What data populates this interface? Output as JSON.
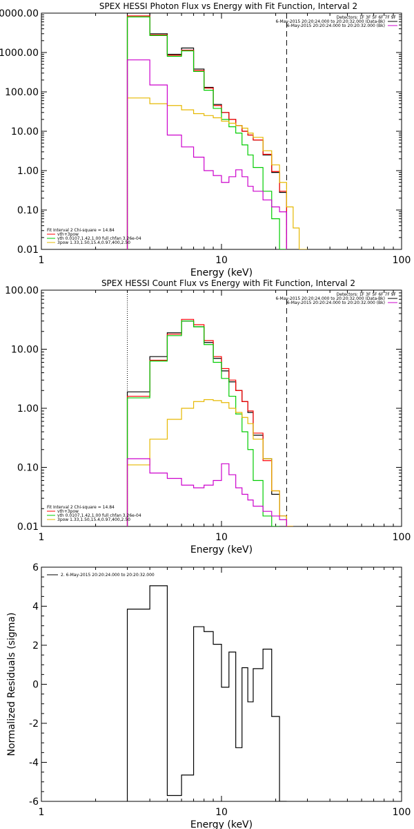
{
  "chart_data": [
    {
      "type": "line",
      "title": "SPEX HESSI Photon Flux vs Energy with Fit Function, Interval 2",
      "xlabel": "Energy (keV)",
      "ylabel": "",
      "xscale": "log",
      "yscale": "log",
      "xlim": [
        1,
        100
      ],
      "ylim": [
        0.01,
        10000
      ],
      "xticks": [
        1,
        10,
        100
      ],
      "xtick_labels": [
        "1",
        "10",
        "100"
      ],
      "yticks": [
        0.01,
        0.1,
        1,
        10,
        100,
        1000,
        10000
      ],
      "ytick_labels": [
        "0.01",
        "0.10",
        "1.00",
        "10.00",
        "100.00",
        "1000.00",
        "10000.00"
      ],
      "grid": false,
      "legend_position": "top-right",
      "top_legend": [
        {
          "label": "Detectors: 1F 3F 5F 6F 7F 9F",
          "color": null
        },
        {
          "label": "6-May-2015 20:20:24.000 to 20:20:32.000 (Data-Bk)",
          "color": "#000000"
        },
        {
          "label": "6-May-2015 20:20:24.000 to 20:20:32.000 (Bk)",
          "color": "#cc00cc"
        }
      ],
      "fit_legend": [
        {
          "label": "Fit Interval 2   Chi-square = 14.84",
          "color": null
        },
        {
          "label": "vth+3pow",
          "color": "#ff0000"
        },
        {
          "label": "vth 0.0107,1.42,1.00  full chfan 3.26e-04",
          "color": "#00cc00"
        },
        {
          "label": "3pow 1.33,1.50,15.4,0.97,400,2.50",
          "color": "#e6b800"
        }
      ],
      "bin_edges": [
        3,
        4,
        5,
        6,
        7,
        8,
        9,
        10,
        11,
        12,
        13,
        14,
        15,
        17,
        19,
        21,
        23,
        25,
        27,
        30
      ],
      "series": [
        {
          "name": "",
          "color": "#000000",
          "values": [
            10000,
            3000,
            900,
            1300,
            380,
            130,
            48,
            30,
            20,
            14,
            10,
            8,
            6,
            2.5,
            0.9,
            0.28
          ]
        },
        {
          "name": "vth+3pow",
          "color": "#ff0000",
          "values": [
            8500,
            2800,
            850,
            1150,
            350,
            125,
            45,
            30,
            20,
            14,
            10,
            8,
            6,
            2.6,
            0.95,
            0.3
          ]
        },
        {
          "name": "vth 0.0107,1.42,1.00  full chfan 3.26e-04",
          "color": "#00cc00",
          "values": [
            8000,
            2700,
            800,
            1100,
            330,
            110,
            38,
            20,
            13,
            9,
            4.5,
            2.5,
            1.2,
            0.3,
            0.06,
            0.01
          ]
        },
        {
          "name": "3pow 1.33,1.50,15.4,0.97,400,2.50",
          "color": "#e6b800",
          "values": [
            70,
            50,
            45,
            35,
            28,
            25,
            22,
            18,
            16,
            14,
            12,
            9,
            7,
            3.2,
            1.4,
            0.5,
            0.12,
            0.035,
            0.01
          ]
        },
        {
          "name": "",
          "color": "#cc00cc",
          "values": [
            650,
            150,
            8,
            4,
            2.2,
            1,
            0.75,
            0.5,
            0.7,
            1.05,
            0.7,
            0.4,
            0.3,
            0.18,
            0.12,
            0.09
          ]
        }
      ]
    },
    {
      "type": "line",
      "title": "SPEX HESSI Count Flux vs Energy with Fit Function, Interval 2",
      "xlabel": "Energy (keV)",
      "ylabel": "",
      "xscale": "log",
      "yscale": "log",
      "xlim": [
        1,
        100
      ],
      "ylim": [
        0.01,
        100
      ],
      "xticks": [
        1,
        10,
        100
      ],
      "xtick_labels": [
        "1",
        "10",
        "100"
      ],
      "yticks": [
        0.01,
        0.1,
        1,
        10,
        100
      ],
      "ytick_labels": [
        "0.01",
        "0.10",
        "1.00",
        "10.00",
        "100.00"
      ],
      "grid": false,
      "legend_position": "top-right",
      "top_legend": [
        {
          "label": "Detectors: 1F 3F 5F 6F 7F 9F",
          "color": null
        },
        {
          "label": "6-May-2015 20:20:24.000 to 20:20:32.000 (Data-Bk)",
          "color": "#000000"
        },
        {
          "label": "6-May-2015 20:20:24.000 to 20:20:32.000 (Bk)",
          "color": "#cc00cc"
        }
      ],
      "fit_legend": [
        {
          "label": "Fit Interval 2   Chi-square = 14.84",
          "color": null
        },
        {
          "label": "vth+3pow",
          "color": "#ff0000"
        },
        {
          "label": "vth 0.0107,1.42,1.00  full chfan 3.26e-04",
          "color": "#00cc00"
        },
        {
          "label": "3pow 1.33,1.50,15.4,0.97,400,2.50",
          "color": "#e6b800"
        }
      ],
      "bin_edges": [
        3,
        4,
        5,
        6,
        7,
        8,
        9,
        10,
        11,
        12,
        13,
        14,
        15,
        17,
        19,
        21,
        23,
        25
      ],
      "series": [
        {
          "name": "",
          "color": "#000000",
          "values": [
            1.9,
            7.5,
            19,
            30,
            24,
            13,
            7,
            4.3,
            2.8,
            2,
            1.3,
            0.85,
            0.35,
            0.14,
            0.035,
            0.015,
            0.01
          ]
        },
        {
          "name": "vth+3pow",
          "color": "#ff0000",
          "values": [
            1.6,
            6.5,
            18,
            32,
            26,
            14,
            7.5,
            4.7,
            3,
            2,
            1.3,
            0.9,
            0.38,
            0.13,
            0.04,
            0.015,
            0.01
          ]
        },
        {
          "name": "vth 0.0107,1.42,1.00  full chfan 3.26e-04",
          "color": "#00cc00",
          "values": [
            1.5,
            6.3,
            17,
            30,
            24,
            12,
            6,
            3.2,
            1.6,
            0.8,
            0.4,
            0.2,
            0.06,
            0.015,
            0.005
          ]
        },
        {
          "name": "3pow 1.33,1.50,15.4,0.97,400,2.50",
          "color": "#e6b800",
          "values": [
            0.11,
            0.3,
            0.65,
            1.0,
            1.3,
            1.4,
            1.35,
            1.25,
            1.0,
            0.85,
            0.7,
            0.55,
            0.3,
            0.14,
            0.04,
            0.015,
            0.005
          ]
        },
        {
          "name": "",
          "color": "#cc00cc",
          "values": [
            0.14,
            0.08,
            0.065,
            0.05,
            0.045,
            0.05,
            0.06,
            0.115,
            0.075,
            0.045,
            0.035,
            0.028,
            0.022,
            0.018,
            0.015,
            0.013
          ]
        }
      ]
    },
    {
      "type": "line",
      "title": "",
      "xlabel": "Energy (keV)",
      "ylabel": "Normalized Residuals (sigma)",
      "xscale": "log",
      "yscale": "linear",
      "xlim": [
        1,
        100
      ],
      "ylim": [
        -6,
        6
      ],
      "xticks": [
        1,
        10,
        100
      ],
      "xtick_labels": [
        "1",
        "10",
        "100"
      ],
      "yticks": [
        -6,
        -4,
        -2,
        0,
        2,
        4,
        6
      ],
      "ytick_labels": [
        "-6",
        "-4",
        "-2",
        "0",
        "2",
        "4",
        "6"
      ],
      "grid": false,
      "legend_position": "top-left",
      "top_legend": [
        {
          "label": "2.  6-May-2015 20:20:24.000 to 20:20:32.000",
          "color": "#000000"
        }
      ],
      "bin_edges": [
        3,
        4,
        5,
        6,
        7,
        8,
        9,
        10,
        11,
        12,
        13,
        14,
        15,
        17,
        19,
        21,
        23
      ],
      "series": [
        {
          "name": "",
          "color": "#000000",
          "values": [
            3.85,
            5.05,
            -5.7,
            -4.65,
            2.95,
            2.7,
            2.05,
            -0.15,
            1.65,
            -3.25,
            0.85,
            -0.9,
            0.8,
            1.8,
            -1.65,
            -6
          ]
        }
      ]
    }
  ]
}
